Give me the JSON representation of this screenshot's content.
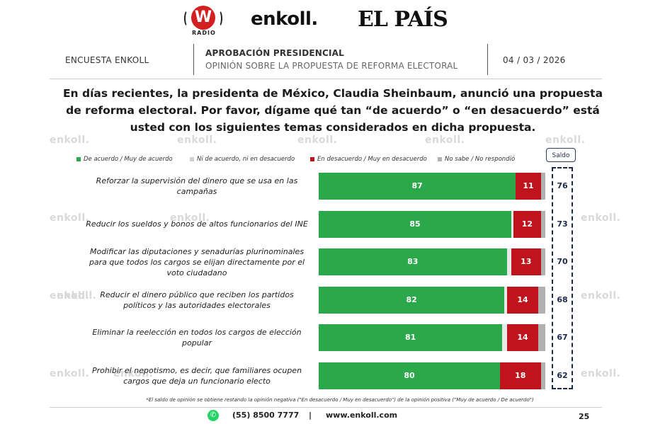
{
  "brands": {
    "wradio_letter": "W",
    "wradio_text": "RADIO",
    "enkoll": "enkoll.",
    "elpais": "EL PAÍS"
  },
  "header": {
    "left": "ENCUESTA ENKOLL",
    "title": "APROBACIÓN PRESIDENCIAL",
    "subtitle": "OPINIÓN SOBRE LA PROPUESTA DE REFORMA ELECTORAL",
    "date": "04 / 03 / 2026"
  },
  "question": "En días recientes, la presidenta de México, Claudia Sheinbaum, anunció una propuesta de reforma electoral. Por favor, dígame qué tan “de acuerdo” o “en desacuerdo” está usted con los siguientes temas considerados en dicha propuesta.",
  "saldo_label": "Saldo",
  "watermark": "enkoll.",
  "chart_data": {
    "type": "bar",
    "orientation": "horizontal-stacked-100",
    "categories": [
      "Reforzar la supervisión del dinero que se usa en las campañas",
      "Reducir los sueldos y bonos de altos funcionarios del INE",
      "Modificar las diputaciones y senadurías plurinominales para que todos los cargos se elijan directamente por el voto ciudadano",
      "Reducir el dinero público que reciben los partidos políticos y las autoridades electorales",
      "Eliminar la reelección en todos los cargos de elección popular",
      "Prohibir el nepotismo, es decir, que familiares ocupen cargos que deja un funcionario electo"
    ],
    "series": [
      {
        "name": "De acuerdo / Muy de acuerdo",
        "color": "#2aa84a",
        "values": [
          87,
          85,
          83,
          82,
          81,
          80
        ]
      },
      {
        "name": "Ni de acuerdo, ni en desacuerdo",
        "color": "#e8e8e8",
        "values": [
          0,
          1,
          2,
          1,
          2,
          0
        ]
      },
      {
        "name": "En desacuerdo / Muy en desacuerdo",
        "color": "#c0141c",
        "values": [
          11,
          12,
          13,
          14,
          14,
          18
        ]
      },
      {
        "name": "No sabe / No respondió",
        "color": "#b0b0b0",
        "values": [
          2,
          2,
          2,
          3,
          3,
          2
        ]
      }
    ],
    "saldo": [
      76,
      73,
      70,
      68,
      67,
      62
    ],
    "value_labels_series": [
      "De acuerdo / Muy de acuerdo",
      "En desacuerdo / Muy en desacuerdo"
    ],
    "legend_position": "top",
    "xlim": [
      0,
      100
    ]
  },
  "footnote": "*El saldo de opinión se obtiene restando la opinión negativa (\"En desacuerdo / Muy en desacuerdo\") de la opinión positiva (\"Muy de acuerdo / De acuerdo\")",
  "footer": {
    "whatsapp_icon": "whatsapp-icon",
    "phone": "(55) 8500 7777",
    "separator": "|",
    "website": "www.enkoll.com",
    "page": "25"
  }
}
